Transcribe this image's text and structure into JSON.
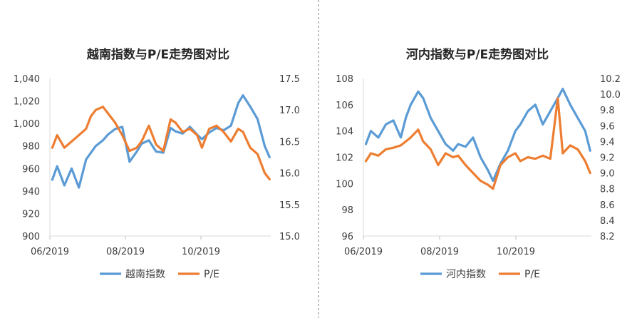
{
  "colors": {
    "index": "#5B9BD5",
    "pe": "#ED7D31",
    "divider": "#7F7F7F"
  },
  "chart_data": [
    {
      "type": "line",
      "title": "越南指数与P/E走势图对比",
      "x_ticks": [
        "06/2019",
        "08/2019",
        "10/2019"
      ],
      "y_left": {
        "lim": [
          900,
          1040
        ],
        "ticks": [
          "900",
          "920",
          "940",
          "960",
          "980",
          "1,000",
          "1,020",
          "1,040"
        ]
      },
      "y_right": {
        "lim": [
          15.0,
          17.5
        ],
        "ticks": [
          "15.0",
          "15.5",
          "16.0",
          "16.5",
          "17.0",
          "17.5"
        ]
      },
      "series": [
        {
          "name": "越南指数",
          "axis": "left",
          "x": [
            "2019-06-03",
            "2019-06-07",
            "2019-06-13",
            "2019-06-19",
            "2019-06-25",
            "2019-07-01",
            "2019-07-05",
            "2019-07-09",
            "2019-07-15",
            "2019-07-19",
            "2019-07-25",
            "2019-07-31",
            "2019-08-06",
            "2019-08-12",
            "2019-08-16",
            "2019-08-22",
            "2019-08-28",
            "2019-09-03",
            "2019-09-09",
            "2019-09-13",
            "2019-09-19",
            "2019-09-25",
            "2019-10-01",
            "2019-10-05",
            "2019-10-11",
            "2019-10-17",
            "2019-10-23",
            "2019-10-29",
            "2019-11-04",
            "2019-11-08",
            "2019-11-14",
            "2019-11-20",
            "2019-11-26",
            "2019-11-30"
          ],
          "y": [
            950,
            962,
            945,
            960,
            943,
            968,
            974,
            980,
            985,
            990,
            995,
            997,
            966,
            975,
            982,
            985,
            975,
            974,
            996,
            993,
            991,
            997,
            990,
            986,
            992,
            996,
            994,
            998,
            1018,
            1025,
            1015,
            1004,
            980,
            970
          ]
        },
        {
          "name": "P/E",
          "axis": "right",
          "x": [
            "2019-06-03",
            "2019-06-07",
            "2019-06-13",
            "2019-06-19",
            "2019-06-25",
            "2019-07-01",
            "2019-07-05",
            "2019-07-09",
            "2019-07-15",
            "2019-07-19",
            "2019-07-25",
            "2019-07-31",
            "2019-08-06",
            "2019-08-12",
            "2019-08-16",
            "2019-08-22",
            "2019-08-28",
            "2019-09-03",
            "2019-09-09",
            "2019-09-13",
            "2019-09-19",
            "2019-09-25",
            "2019-10-01",
            "2019-10-05",
            "2019-10-11",
            "2019-10-17",
            "2019-10-23",
            "2019-10-29",
            "2019-11-04",
            "2019-11-08",
            "2019-11-14",
            "2019-11-20",
            "2019-11-26",
            "2019-11-30"
          ],
          "y": [
            16.4,
            16.6,
            16.4,
            16.5,
            16.6,
            16.7,
            16.9,
            17.0,
            17.05,
            16.95,
            16.8,
            16.6,
            16.35,
            16.4,
            16.5,
            16.75,
            16.45,
            16.35,
            16.85,
            16.8,
            16.65,
            16.7,
            16.6,
            16.4,
            16.7,
            16.75,
            16.65,
            16.5,
            16.7,
            16.65,
            16.4,
            16.3,
            16.0,
            15.9
          ]
        }
      ]
    },
    {
      "type": "line",
      "title": "河内指数与P/E走势图对比",
      "x_ticks": [
        "06/2019",
        "08/2019",
        "10/2019"
      ],
      "y_left": {
        "lim": [
          96,
          108
        ],
        "ticks": [
          "96",
          "98",
          "100",
          "102",
          "104",
          "106",
          "108"
        ]
      },
      "y_right": {
        "lim": [
          8.2,
          10.2
        ],
        "ticks": [
          "8.2",
          "8.4",
          "8.6",
          "8.8",
          "9.0",
          "9.2",
          "9.4",
          "9.6",
          "9.8",
          "10.0",
          "10.2"
        ]
      },
      "series": [
        {
          "name": "河内指数",
          "axis": "left",
          "x": [
            "2019-06-03",
            "2019-06-07",
            "2019-06-13",
            "2019-06-19",
            "2019-06-25",
            "2019-07-01",
            "2019-07-05",
            "2019-07-09",
            "2019-07-15",
            "2019-07-19",
            "2019-07-25",
            "2019-07-31",
            "2019-08-06",
            "2019-08-12",
            "2019-08-16",
            "2019-08-22",
            "2019-08-28",
            "2019-09-03",
            "2019-09-09",
            "2019-09-13",
            "2019-09-19",
            "2019-09-25",
            "2019-10-01",
            "2019-10-05",
            "2019-10-11",
            "2019-10-17",
            "2019-10-23",
            "2019-10-29",
            "2019-11-04",
            "2019-11-08",
            "2019-11-14",
            "2019-11-20",
            "2019-11-26",
            "2019-11-30"
          ],
          "y": [
            103.0,
            104.0,
            103.5,
            104.5,
            104.8,
            103.5,
            105.0,
            106.0,
            107.0,
            106.5,
            105.0,
            104.0,
            103.0,
            102.5,
            103.0,
            102.8,
            103.5,
            102.0,
            101.0,
            100.2,
            101.5,
            102.5,
            104.0,
            104.5,
            105.5,
            106.0,
            104.5,
            105.5,
            106.5,
            107.2,
            106.0,
            105.0,
            104.0,
            102.5
          ]
        },
        {
          "name": "P/E",
          "axis": "right",
          "x": [
            "2019-06-03",
            "2019-06-07",
            "2019-06-13",
            "2019-06-19",
            "2019-06-25",
            "2019-07-01",
            "2019-07-05",
            "2019-07-09",
            "2019-07-15",
            "2019-07-19",
            "2019-07-25",
            "2019-07-31",
            "2019-08-06",
            "2019-08-12",
            "2019-08-16",
            "2019-08-22",
            "2019-08-28",
            "2019-09-03",
            "2019-09-09",
            "2019-09-13",
            "2019-09-19",
            "2019-09-25",
            "2019-10-01",
            "2019-10-05",
            "2019-10-11",
            "2019-10-17",
            "2019-10-23",
            "2019-10-29",
            "2019-11-04",
            "2019-11-08",
            "2019-11-14",
            "2019-11-20",
            "2019-11-26",
            "2019-11-30"
          ],
          "y": [
            9.15,
            9.25,
            9.22,
            9.3,
            9.32,
            9.35,
            9.4,
            9.45,
            9.55,
            9.4,
            9.3,
            9.1,
            9.25,
            9.2,
            9.22,
            9.1,
            9.0,
            8.9,
            8.85,
            8.8,
            9.1,
            9.2,
            9.25,
            9.15,
            9.2,
            9.18,
            9.22,
            9.18,
            9.95,
            9.25,
            9.35,
            9.3,
            9.15,
            9.0
          ]
        }
      ]
    }
  ]
}
